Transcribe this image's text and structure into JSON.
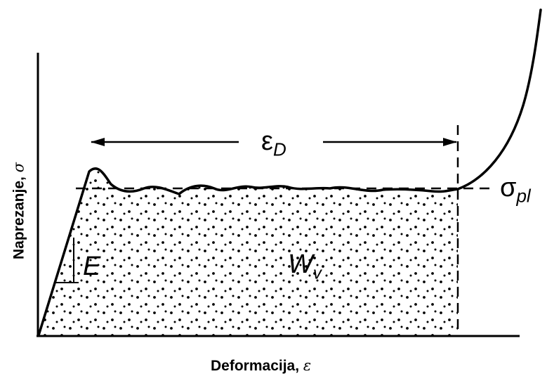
{
  "axes": {
    "x_label": "Deformacija, ",
    "x_symbol": "ε",
    "y_label": "Naprezanje, ",
    "y_symbol": "σ"
  },
  "annotations": {
    "modulus": "E",
    "energy_main": "W",
    "energy_sub": "v",
    "densification_main": "ε",
    "densification_sub": "D",
    "plateau_main": "σ",
    "plateau_sub": "pl"
  },
  "style": {
    "line_color": "#000000",
    "background": "#ffffff"
  }
}
